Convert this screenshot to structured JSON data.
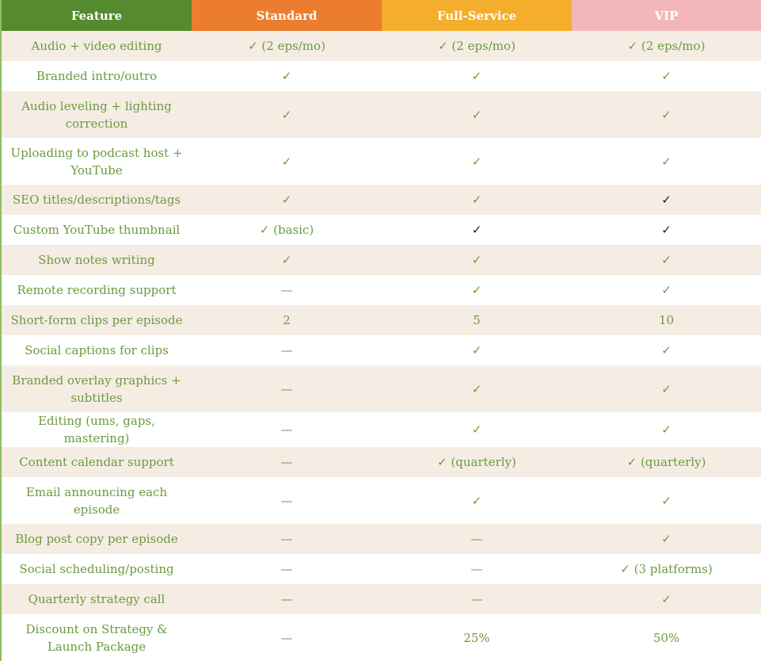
{
  "header": [
    {
      "label": "Feature",
      "color": "#568a2e"
    },
    {
      "label": "Standard",
      "color": "#ec7d30"
    },
    {
      "label": "Full-Service",
      "color": "#f4ae2b"
    },
    {
      "label": "VIP",
      "color": "#f4b7b9"
    }
  ],
  "rows": [
    {
      "feature": "Audio + video editing",
      "cells": [
        "✓ (2 eps/mo)",
        "✓ (2 eps/mo)",
        "✓ (2 eps/mo)"
      ],
      "dark": []
    },
    {
      "feature": "Branded intro/outro",
      "cells": [
        "✓",
        "✓",
        "✓"
      ],
      "dark": []
    },
    {
      "feature": "Audio leveling + lighting correction",
      "cells": [
        "✓",
        "✓",
        "✓"
      ],
      "dark": [],
      "tall": true
    },
    {
      "feature": "Uploading to podcast host + YouTube",
      "cells": [
        "✓",
        "✓",
        "✓"
      ],
      "dark": [],
      "tall": true
    },
    {
      "feature": "SEO titles/descriptions/tags",
      "cells": [
        "✓",
        "✓",
        "✓"
      ],
      "dark": [
        2
      ]
    },
    {
      "feature": "Custom YouTube thumbnail",
      "cells": [
        "✓ (basic)",
        "✓",
        "✓"
      ],
      "dark": [
        1,
        2
      ]
    },
    {
      "feature": "Show notes writing",
      "cells": [
        "✓",
        "✓",
        "✓"
      ],
      "dark": []
    },
    {
      "feature": "Remote recording support",
      "cells": [
        "—",
        "✓",
        "✓"
      ],
      "dark": []
    },
    {
      "feature": "Short-form clips per episode",
      "cells": [
        "2",
        "5",
        "10"
      ],
      "dark": []
    },
    {
      "feature": "Social captions for clips",
      "cells": [
        "—",
        "✓",
        "✓"
      ],
      "dark": []
    },
    {
      "feature": "Branded overlay graphics + subtitles",
      "cells": [
        "—",
        "✓",
        "✓"
      ],
      "dark": [],
      "tall": true
    },
    {
      "feature": "Editing (ums, gaps, mastering)",
      "cells": [
        "—",
        "✓",
        "✓"
      ],
      "dark": []
    },
    {
      "feature": "Content calendar support",
      "cells": [
        "—",
        "✓ (quarterly)",
        "✓ (quarterly)"
      ],
      "dark": []
    },
    {
      "feature": "Email announcing each episode",
      "cells": [
        "—",
        "✓",
        "✓"
      ],
      "dark": [],
      "tall": true
    },
    {
      "feature": "Blog post copy per episode",
      "cells": [
        "—",
        "—",
        "✓"
      ],
      "dark": []
    },
    {
      "feature": "Social scheduling/posting",
      "cells": [
        "—",
        "—",
        "✓ (3 platforms)"
      ],
      "dark": []
    },
    {
      "feature": "Quarterly strategy call",
      "cells": [
        "—",
        "—",
        "✓"
      ],
      "dark": []
    },
    {
      "feature": "Discount on Strategy & Launch Package",
      "cells": [
        "—",
        "25%",
        "50%"
      ],
      "dark": [],
      "tall": true
    }
  ]
}
